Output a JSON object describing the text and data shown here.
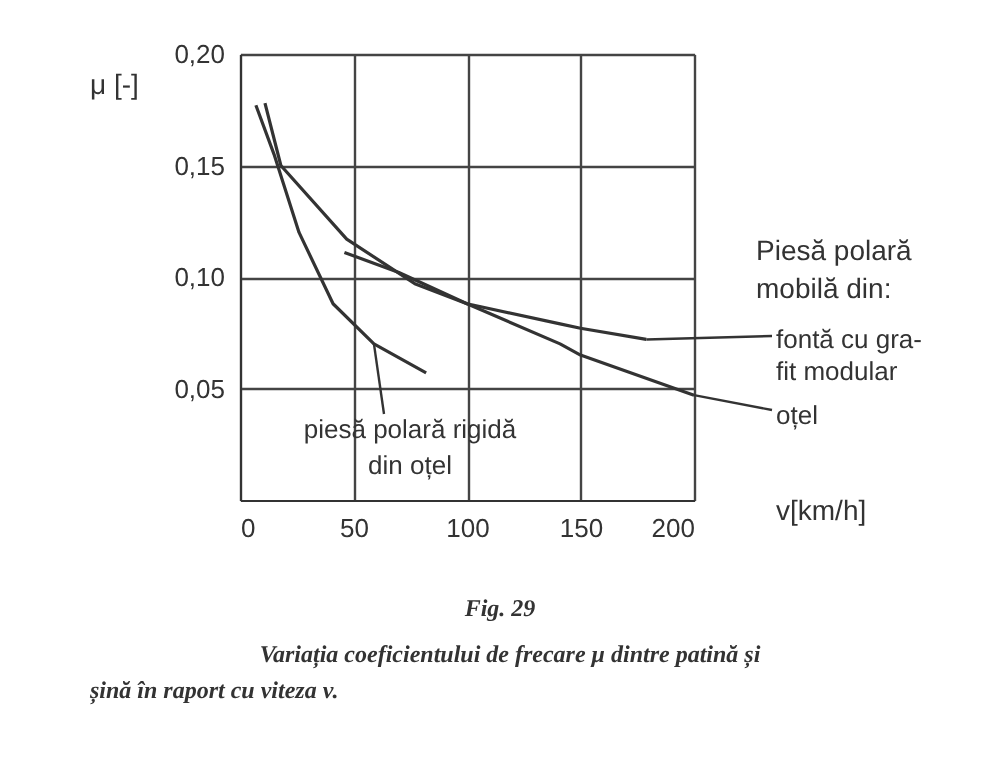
{
  "chart_data": {
    "type": "line",
    "title": "Fig. 29",
    "subtitle": "Variația coeficientului de frecare μ dintre patină și șină în raport cu viteza v.",
    "xlabel": "v[km/h]",
    "ylabel": "μ [-]",
    "annotations": [
      "Piesă polară mobilă din:"
    ],
    "series": [
      {
        "name": "piesă polară rigidă din oțel",
        "color": "#333333",
        "x": [
          7,
          15,
          26,
          41,
          59,
          82
        ],
        "values": [
          0.177,
          0.155,
          0.12,
          0.088,
          0.07,
          0.057
        ]
      },
      {
        "name": "fontă cu gra-fit modular",
        "color": "#333333",
        "x": [
          46,
          70,
          100,
          141,
          150,
          179
        ],
        "values": [
          0.111,
          0.102,
          0.088,
          0.079,
          0.077,
          0.072
        ]
      },
      {
        "name": "oțel",
        "color": "#333333",
        "x": [
          11,
          18,
          47,
          77,
          100,
          141,
          150,
          200
        ],
        "values": [
          0.178,
          0.15,
          0.117,
          0.097,
          0.088,
          0.07,
          0.065,
          0.047
        ]
      }
    ],
    "xlim": [
      0,
      200
    ],
    "xticks": [
      0,
      50,
      100,
      150,
      200
    ],
    "ylim": [
      0,
      0.2
    ],
    "yticks": [
      {
        "value": 0.05,
        "label": "0,05"
      },
      {
        "value": 0.1,
        "label": "0,10"
      },
      {
        "value": 0.15,
        "label": "0,15"
      },
      {
        "value": 0.2,
        "label": "0,20"
      }
    ],
    "grid": true,
    "legend": "right",
    "marker": "none",
    "line_style": "solid"
  }
}
